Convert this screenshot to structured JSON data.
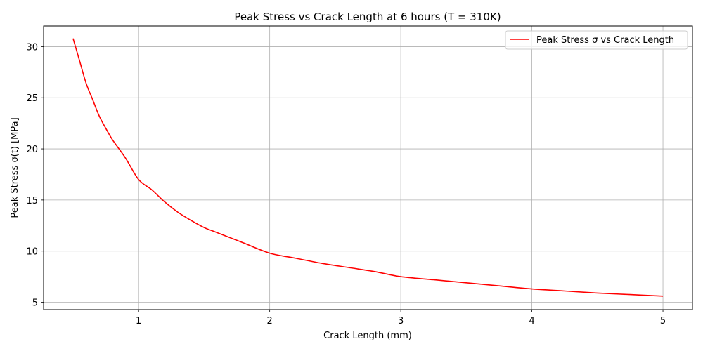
{
  "chart_data": {
    "type": "line",
    "title": "Peak Stress vs Crack Length at 6 hours (T = 310K)",
    "xlabel": "Crack Length (mm)",
    "ylabel": "Peak Stress σ(t) [MPa]",
    "xlim": [
      0.275,
      5.225
    ],
    "ylim": [
      4.28,
      32.02
    ],
    "xticks": [
      1,
      2,
      3,
      4,
      5
    ],
    "yticks": [
      5,
      10,
      15,
      20,
      25,
      30
    ],
    "grid": true,
    "legend_position": "top-right",
    "series": [
      {
        "name": "Peak Stress σ vs Crack Length",
        "color": "#ff0000",
        "x": [
          0.5,
          0.55,
          0.6,
          0.65,
          0.7,
          0.75,
          0.8,
          0.9,
          1.0,
          1.1,
          1.2,
          1.3,
          1.4,
          1.5,
          1.6,
          1.8,
          2.0,
          2.2,
          2.4,
          2.6,
          2.8,
          3.0,
          3.25,
          3.5,
          3.75,
          4.0,
          4.25,
          4.5,
          4.75,
          5.0
        ],
        "y": [
          30.8,
          28.6,
          26.4,
          24.8,
          23.2,
          22.0,
          20.9,
          19.1,
          17.0,
          16.0,
          14.8,
          13.8,
          13.0,
          12.3,
          11.8,
          10.8,
          9.8,
          9.3,
          8.8,
          8.4,
          8.0,
          7.5,
          7.2,
          6.9,
          6.6,
          6.3,
          6.1,
          5.9,
          5.75,
          5.6
        ]
      }
    ]
  }
}
